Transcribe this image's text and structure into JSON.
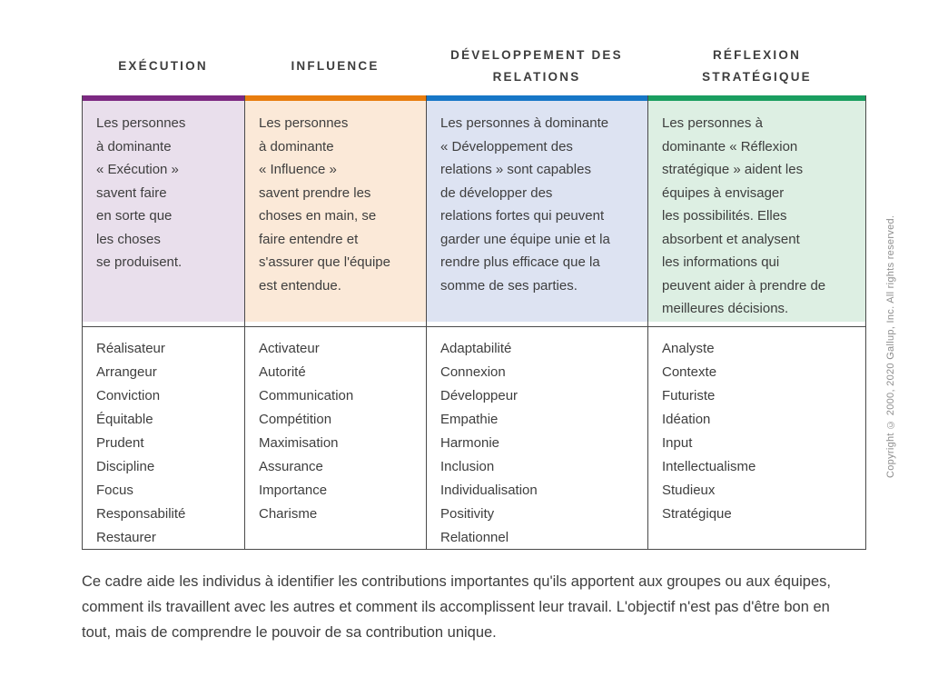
{
  "columns": [
    {
      "title": "EXÉCUTION",
      "bar_color": "#7C2982",
      "bg_color": "#E9DFEC",
      "description": "Les personnes\nà dominante\n« Exécution »\nsavent faire\nen sorte que\nles choses\nse produisent.",
      "strengths": [
        "Réalisateur",
        "Arrangeur",
        "Conviction",
        "Équitable",
        "Prudent",
        "Discipline",
        "Focus",
        "Responsabilité",
        "Restaurer"
      ]
    },
    {
      "title": "INFLUENCE",
      "bar_color": "#E87D0E",
      "bg_color": "#FBE9D8",
      "description": "Les personnes\nà dominante\n« Influence »\nsavent prendre les\nchoses en main, se\nfaire entendre et\ns'assurer que l'équipe\nest entendue.",
      "strengths": [
        "Activateur",
        "Autorité",
        "Communication",
        "Compétition",
        "Maximisation",
        "Assurance",
        "Importance",
        "Charisme"
      ]
    },
    {
      "title": "DÉVELOPPEMENT DES\nRELATIONS",
      "bar_color": "#1777C7",
      "bg_color": "#DDE3F2",
      "description": "Les personnes à dominante\n« Développement des\nrelations » sont capables\nde développer des\nrelations fortes qui peuvent\ngarder une équipe unie et la\nrendre plus efficace que la\nsomme de ses parties.",
      "strengths": [
        "Adaptabilité",
        "Connexion",
        "Développeur",
        "Empathie",
        "Harmonie",
        "Inclusion",
        "Individualisation",
        "Positivity",
        "Relationnel"
      ]
    },
    {
      "title": "RÉFLEXION\nSTRATÉGIQUE",
      "bar_color": "#1A9E60",
      "bg_color": "#DDEFE3",
      "description": "Les personnes à\ndominante « Réflexion\nstratégique » aident les\néquipes à envisager\nles possibilités. Elles\nabsorbent et analysent\nles informations qui\npeuvent aider à prendre de\nmeilleures décisions.",
      "strengths": [
        "Analyste",
        "Contexte",
        "Futuriste",
        "Idéation",
        "Input",
        "Intellectualisme",
        "Studieux",
        "Stratégique"
      ]
    }
  ],
  "footer_note": "Ce cadre aide les individus à identifier les contributions importantes qu'ils apportent aux groupes ou aux équipes, comment ils travaillent avec les autres et comment ils accomplissent leur travail. L'objectif n'est pas d'être bon en tout, mais de comprendre le pouvoir de sa contribution unique.",
  "copyright": "Copyright © 2000, 2020 Gallup, Inc. All rights reserved."
}
